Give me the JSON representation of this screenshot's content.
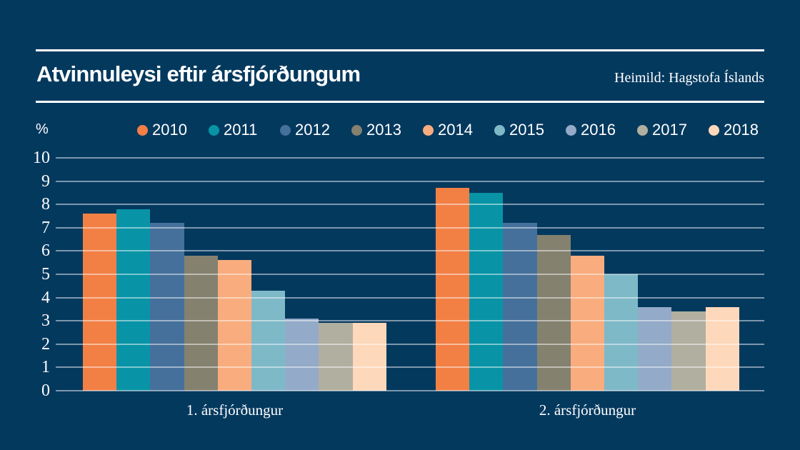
{
  "header": {
    "title": "Atvinnuleysi eftir ársfjórðungum",
    "source": "Heimild: Hagstofa Íslands"
  },
  "axis": {
    "unit_label": "%"
  },
  "colors": {
    "background": "#04395E",
    "rule": "#FFFFFF",
    "gridline": "rgba(255,255,255,0.48)",
    "text": "#FFFFFF"
  },
  "chart_data": {
    "type": "bar",
    "title": "Atvinnuleysi eftir ársfjórðungum",
    "categories": [
      "1. ársfjórðungur",
      "2. ársfjórðungur"
    ],
    "series": [
      {
        "name": "2010",
        "color": "#F28045",
        "values": [
          7.6,
          8.7
        ]
      },
      {
        "name": "2011",
        "color": "#0894A6",
        "values": [
          7.8,
          8.5
        ]
      },
      {
        "name": "2012",
        "color": "#45709B",
        "values": [
          7.2,
          7.2
        ]
      },
      {
        "name": "2013",
        "color": "#84816F",
        "values": [
          5.8,
          6.7
        ]
      },
      {
        "name": "2014",
        "color": "#F9AC7E",
        "values": [
          5.6,
          5.8
        ]
      },
      {
        "name": "2015",
        "color": "#7EB9C8",
        "values": [
          4.3,
          5.0
        ]
      },
      {
        "name": "2016",
        "color": "#93AAC8",
        "values": [
          3.1,
          3.6
        ]
      },
      {
        "name": "2017",
        "color": "#B1AFA0",
        "values": [
          2.9,
          3.4
        ]
      },
      {
        "name": "2018",
        "color": "#FED8BA",
        "values": [
          2.9,
          3.6
        ]
      }
    ],
    "xlabel": "",
    "ylabel": "%",
    "ylim": [
      0,
      10
    ],
    "yticks": [
      0,
      1,
      2,
      3,
      4,
      5,
      6,
      7,
      8,
      9,
      10
    ],
    "grid": true,
    "legend_position": "top"
  }
}
